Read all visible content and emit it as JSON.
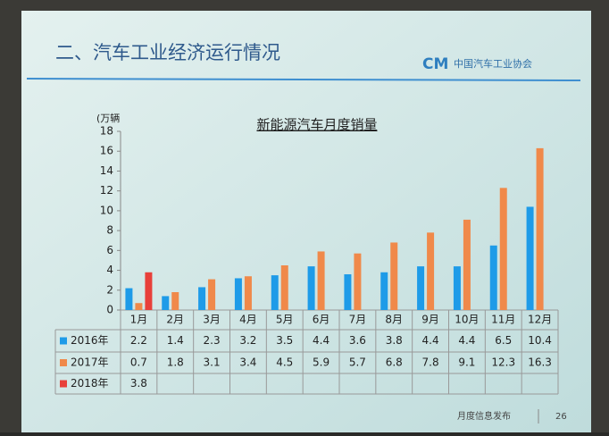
{
  "header": {
    "title": "二、汽车工业经济运行情况",
    "logo": "中国汽车工业协会"
  },
  "footer": {
    "text": "月度信息发布",
    "page": "26"
  },
  "chart_data": {
    "type": "bar",
    "title": "新能源汽车月度销量",
    "y_label": "(万辆",
    "categories": [
      "1月",
      "2月",
      "3月",
      "4月",
      "5月",
      "6月",
      "7月",
      "8月",
      "9月",
      "10月",
      "11月",
      "12月"
    ],
    "series": [
      {
        "name": "2016年",
        "color": "#1e9be8",
        "values": [
          2.2,
          1.4,
          2.3,
          3.2,
          3.5,
          4.4,
          3.6,
          3.8,
          4.4,
          4.4,
          6.5,
          10.4
        ]
      },
      {
        "name": "2017年",
        "color": "#f0894a",
        "values": [
          0.7,
          1.8,
          3.1,
          3.4,
          4.5,
          5.9,
          5.7,
          6.8,
          7.8,
          9.1,
          12.3,
          16.3
        ]
      },
      {
        "name": "2018年",
        "color": "#e8403a",
        "values": [
          3.8,
          null,
          null,
          null,
          null,
          null,
          null,
          null,
          null,
          null,
          null,
          null
        ]
      }
    ],
    "ylim": [
      0,
      18
    ],
    "yticks": [
      0,
      2,
      4,
      6,
      8,
      10,
      12,
      14,
      16,
      18
    ],
    "grid": false
  }
}
